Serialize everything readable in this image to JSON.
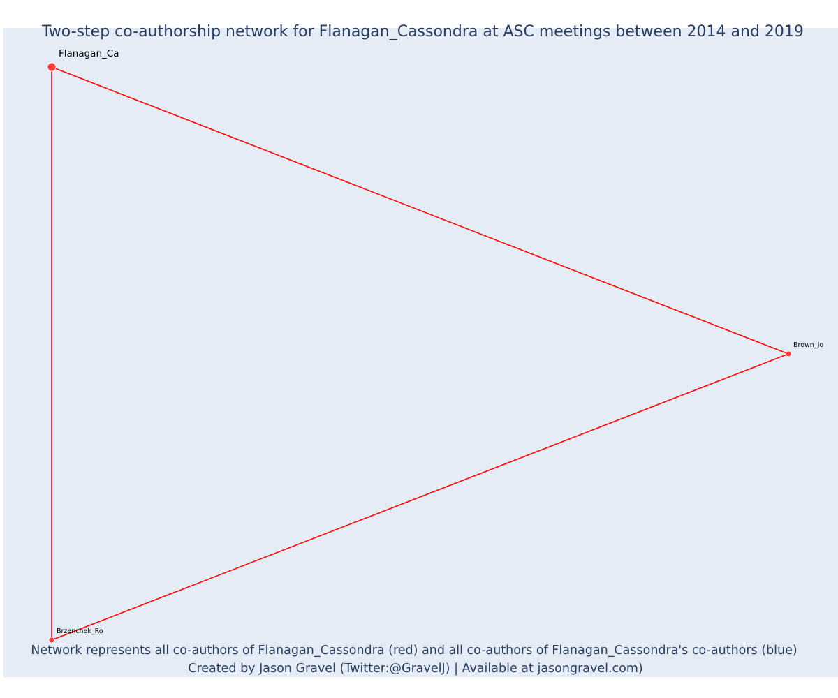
{
  "title": "Two-step co-authorship network for Flanagan_Cassondra at ASC meetings between 2014 and 2019",
  "caption": {
    "line1": "Network represents all co-authors of Flanagan_Cassondra (red) and all co-authors of Flanagan_Cassondra's co-authors (blue)",
    "line2": "Created by Jason Gravel (Twitter:@GravelJ) | Available at jasongravel.com)"
  },
  "colors": {
    "background": "#e5ecf6",
    "edge": "#ff0000",
    "node": "#ff3b3b",
    "text": "#2a3f5f"
  },
  "network": {
    "nodes": [
      {
        "id": "Flanagan_Ca",
        "label": "Flanagan_Ca",
        "group": "focal"
      },
      {
        "id": "Brown_Jo",
        "label": "Brown_Jo",
        "group": "coauthor"
      },
      {
        "id": "Brzenchek_Ro",
        "label": "Brzenchek_Ro",
        "group": "coauthor"
      }
    ],
    "edges": [
      {
        "source": "Flanagan_Ca",
        "target": "Brown_Jo"
      },
      {
        "source": "Flanagan_Ca",
        "target": "Brzenchek_Ro"
      },
      {
        "source": "Brown_Jo",
        "target": "Brzenchek_Ro"
      }
    ]
  }
}
